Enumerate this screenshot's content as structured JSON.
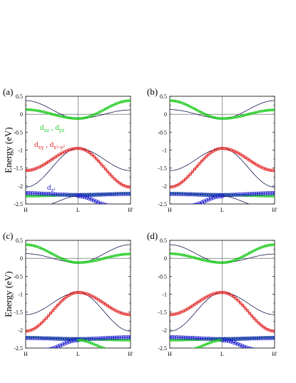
{
  "chart_data": [
    {
      "panel": "(a)",
      "type": "line",
      "ylabel": "Energy (eV)",
      "ylim": [
        -2.5,
        0.5
      ],
      "yticks": [
        "0.5",
        "0",
        "-0.5",
        "-1",
        "-1.5",
        "-2",
        "-2.5"
      ],
      "xticks": [
        "H",
        "L",
        "H'"
      ],
      "annotations": [
        {
          "text_main": "d",
          "sub1": "xz",
          "sep": " , d",
          "sub2": "yz",
          "color": "#22cc22"
        },
        {
          "text_main": "d",
          "sub1": "xy",
          "sep": " , d",
          "sub2": "x²-y²",
          "color": "#e02020"
        },
        {
          "text_main": "d",
          "sub1": "z²",
          "sep": "",
          "sub2": "",
          "color": "#2020d0"
        }
      ],
      "series": [
        {
          "style": "plain",
          "x": [
            0,
            0.5,
            1
          ],
          "y": [
            0.38,
            -0.12,
            0.12
          ]
        },
        {
          "style": "green",
          "x": [
            0,
            0.5,
            1
          ],
          "y": [
            0.13,
            -0.12,
            0.38
          ]
        },
        {
          "style": "plain",
          "x": [
            0,
            0.5,
            1
          ],
          "y": [
            -2.03,
            -0.95,
            -1.57
          ]
        },
        {
          "style": "red",
          "x": [
            0,
            0.5,
            1
          ],
          "y": [
            -1.57,
            -0.95,
            -2.03
          ]
        },
        {
          "style": "green",
          "x": [
            0,
            0.5,
            1
          ],
          "y": [
            -2.28,
            -2.25,
            -2.2
          ]
        },
        {
          "style": "blue",
          "x": [
            0,
            0.5,
            1
          ],
          "y": [
            -2.2,
            -2.25,
            -2.22
          ]
        },
        {
          "style": "blue",
          "x": [
            0.5,
            0.82
          ],
          "y": [
            -2.28,
            -2.55
          ]
        },
        {
          "style": "plain",
          "x": [
            0.14,
            0.5
          ],
          "y": [
            -2.55,
            -2.28
          ]
        }
      ]
    },
    {
      "panel": "(b)",
      "type": "line",
      "ylim": [
        -2.5,
        0.5
      ],
      "yticks": [
        "0.5",
        "0",
        "-0.5",
        "-1",
        "-1.5",
        "-2",
        "-2.5"
      ],
      "xticks": [
        "H",
        "L",
        "H'"
      ],
      "series": [
        {
          "style": "plain",
          "x": [
            0,
            0.5,
            1
          ],
          "y": [
            0.13,
            -0.12,
            0.38
          ]
        },
        {
          "style": "green",
          "x": [
            0,
            0.5,
            1
          ],
          "y": [
            0.38,
            -0.12,
            0.12
          ]
        },
        {
          "style": "plain",
          "x": [
            0,
            0.5,
            1
          ],
          "y": [
            -1.57,
            -0.95,
            -2.03
          ]
        },
        {
          "style": "red",
          "x": [
            0,
            0.5,
            1
          ],
          "y": [
            -2.03,
            -0.95,
            -1.57
          ]
        },
        {
          "style": "green",
          "x": [
            0,
            0.5,
            1
          ],
          "y": [
            -2.2,
            -2.25,
            -2.28
          ]
        },
        {
          "style": "blue",
          "x": [
            0,
            0.5,
            1
          ],
          "y": [
            -2.22,
            -2.25,
            -2.2
          ]
        },
        {
          "style": "blue",
          "x": [
            0.18,
            0.5
          ],
          "y": [
            -2.55,
            -2.28
          ]
        },
        {
          "style": "plain",
          "x": [
            0.5,
            0.86
          ],
          "y": [
            -2.28,
            -2.55
          ]
        }
      ]
    },
    {
      "panel": "(c)",
      "type": "line",
      "ylabel": "Energy (eV)",
      "ylim": [
        -2.5,
        0.5
      ],
      "yticks": [
        "0.5",
        "0",
        "-0.5",
        "-1",
        "-1.5",
        "-2",
        "-2.5"
      ],
      "xticks": [
        "H",
        "L",
        "H'"
      ],
      "series": [
        {
          "style": "plain",
          "x": [
            0,
            0.5,
            1
          ],
          "y": [
            0.13,
            -0.12,
            0.38
          ]
        },
        {
          "style": "green",
          "x": [
            0,
            0.5,
            1
          ],
          "y": [
            0.38,
            -0.12,
            0.12
          ]
        },
        {
          "style": "plain",
          "x": [
            0,
            0.5,
            1
          ],
          "y": [
            -1.57,
            -0.95,
            -2.03
          ]
        },
        {
          "style": "red",
          "x": [
            0,
            0.5,
            1
          ],
          "y": [
            -2.03,
            -0.95,
            -1.57
          ]
        },
        {
          "style": "green",
          "x": [
            0,
            0.5,
            1
          ],
          "y": [
            -2.2,
            -2.25,
            -2.28
          ]
        },
        {
          "style": "blue",
          "x": [
            0,
            0.5,
            1
          ],
          "y": [
            -2.22,
            -2.25,
            -2.2
          ]
        },
        {
          "style": "blue",
          "x": [
            0.18,
            0.5
          ],
          "y": [
            -2.55,
            -2.28
          ]
        },
        {
          "style": "green",
          "x": [
            0.5,
            0.84
          ],
          "y": [
            -2.28,
            -2.55
          ]
        }
      ]
    },
    {
      "panel": "(d)",
      "type": "line",
      "ylim": [
        -2.5,
        0.5
      ],
      "yticks": [
        "0.5",
        "0",
        "-0.5",
        "-1",
        "-1.5",
        "-2",
        "-2.5"
      ],
      "xticks": [
        "H",
        "L",
        "H'"
      ],
      "series": [
        {
          "style": "plain",
          "x": [
            0,
            0.5,
            1
          ],
          "y": [
            0.38,
            -0.12,
            0.12
          ]
        },
        {
          "style": "green",
          "x": [
            0,
            0.5,
            1
          ],
          "y": [
            0.13,
            -0.12,
            0.38
          ]
        },
        {
          "style": "plain",
          "x": [
            0,
            0.5,
            1
          ],
          "y": [
            -2.03,
            -0.95,
            -1.57
          ]
        },
        {
          "style": "red",
          "x": [
            0,
            0.5,
            1
          ],
          "y": [
            -1.57,
            -0.95,
            -2.03
          ]
        },
        {
          "style": "green",
          "x": [
            0,
            0.5,
            1
          ],
          "y": [
            -2.28,
            -2.25,
            -2.2
          ]
        },
        {
          "style": "blue",
          "x": [
            0,
            0.5,
            1
          ],
          "y": [
            -2.2,
            -2.25,
            -2.22
          ]
        },
        {
          "style": "green",
          "x": [
            0.16,
            0.5
          ],
          "y": [
            -2.55,
            -2.28
          ]
        },
        {
          "style": "blue",
          "x": [
            0.5,
            0.84
          ],
          "y": [
            -2.28,
            -2.55
          ]
        }
      ]
    }
  ],
  "colors": {
    "plain": "#1a1a55",
    "green": "#22cc22",
    "red": "#e02020",
    "blue": "#2020d0",
    "axis": "#000000"
  }
}
